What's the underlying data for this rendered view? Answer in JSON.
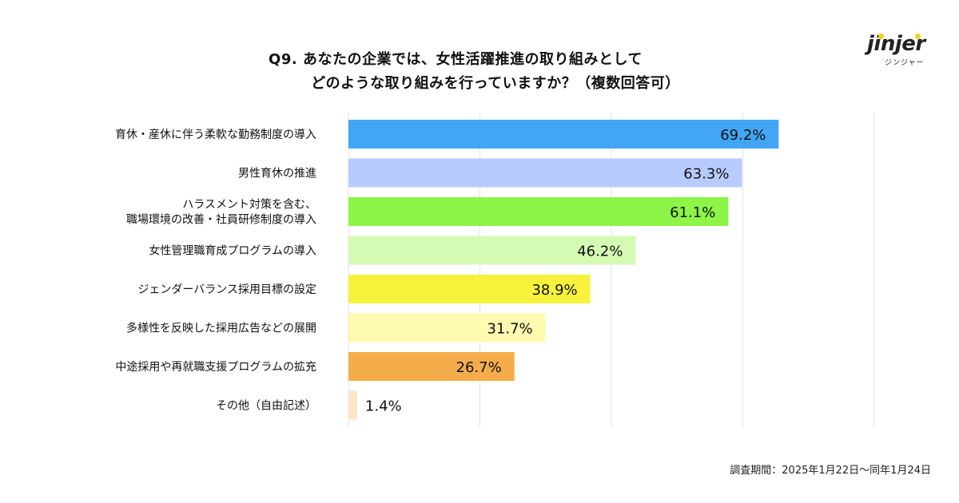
{
  "title": {
    "line1": "Q9. あなたの企業では、女性活躍推進の取り組みとして",
    "line2": "どのような取り組みを行っていますか？（複数回答可）"
  },
  "logo": {
    "text": "jinjer",
    "kana": "ジンジャー",
    "accent": "#f2d21b"
  },
  "note": "調査期間：2025年1月22日〜同年1月24日",
  "chart_data": {
    "type": "bar",
    "orientation": "horizontal",
    "categories": [
      [
        "育休・産休に伴う柔軟な勤務制度の導入"
      ],
      [
        "男性育休の推進"
      ],
      [
        "ハラスメント対策を含む、",
        "職場環境の改善・社員研修制度の導入"
      ],
      [
        "女性管理職育成プログラムの導入"
      ],
      [
        "ジェンダーバランス採用目標の設定"
      ],
      [
        "多様性を反映した採用広告などの展開"
      ],
      [
        "中途採用や再就職支援プログラムの拡充"
      ],
      [
        "その他（自由記述）"
      ]
    ],
    "values": [
      69.2,
      63.3,
      61.1,
      46.2,
      38.9,
      31.7,
      26.7,
      1.4
    ],
    "value_labels": [
      "69.2%",
      "63.3%",
      "61.1%",
      "46.2%",
      "38.9%",
      "31.7%",
      "26.7%",
      "1.4%"
    ],
    "colors": [
      "#42a5f5",
      "#b8cbff",
      "#8cf548",
      "#d4fbb4",
      "#f7f23c",
      "#fefab0",
      "#f5ac4a",
      "#fde3c8"
    ],
    "xlim": [
      0,
      80
    ],
    "grid": true,
    "legend": "none"
  }
}
